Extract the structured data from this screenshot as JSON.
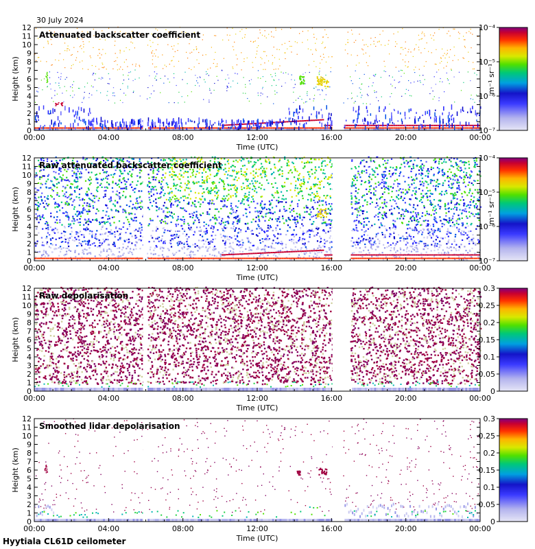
{
  "figure": {
    "date": "30 July 2024",
    "instrument": "Hyytiala CL61D ceilometer"
  },
  "chart_data": [
    {
      "type": "heatmap",
      "title": "Attenuated backscatter coefficient",
      "xlabel": "Time (UTC)",
      "ylabel": "Height (km)",
      "xlim": [
        0,
        24
      ],
      "ylim": [
        0,
        12
      ],
      "x_ticks": [
        "00:00",
        "04:00",
        "08:00",
        "12:00",
        "16:00",
        "20:00",
        "00:00"
      ],
      "y_ticks": [
        "0",
        "1",
        "2",
        "3",
        "4",
        "5",
        "6",
        "7",
        "8",
        "9",
        "10",
        "11",
        "12"
      ],
      "colorbar": {
        "scale": "log",
        "range": [
          1e-07,
          0.0001
        ],
        "tick_labels": [
          "10⁻⁴",
          "10⁻⁵",
          "10⁻⁶",
          "10⁻⁷"
        ],
        "unit_label": "m⁻¹ sr⁻¹"
      },
      "data_gaps_hours": [
        [
          5.85,
          6.05
        ],
        [
          16.05,
          16.6
        ]
      ]
    },
    {
      "type": "heatmap",
      "title": "Raw attenuated backscatter coefficient",
      "xlabel": "Time (UTC)",
      "ylabel": "Height (km)",
      "xlim": [
        0,
        24
      ],
      "ylim": [
        0,
        12
      ],
      "x_ticks": [
        "00:00",
        "04:00",
        "08:00",
        "12:00",
        "16:00",
        "20:00",
        "00:00"
      ],
      "y_ticks": [
        "0",
        "1",
        "2",
        "3",
        "4",
        "5",
        "6",
        "7",
        "8",
        "9",
        "10",
        "11",
        "12"
      ],
      "colorbar": {
        "scale": "log",
        "range": [
          1e-07,
          0.0001
        ],
        "tick_labels": [
          "10⁻⁴",
          "10⁻⁵",
          "10⁻⁶",
          "10⁻⁷"
        ],
        "unit_label": "m⁻¹ sr⁻¹"
      },
      "data_gaps_hours": [
        [
          5.85,
          6.05
        ],
        [
          16.05,
          17.0
        ]
      ]
    },
    {
      "type": "heatmap",
      "title": "Raw depolarisation",
      "xlabel": "Time (UTC)",
      "ylabel": "Height (km)",
      "xlim": [
        0,
        24
      ],
      "ylim": [
        0,
        12
      ],
      "x_ticks": [
        "00:00",
        "04:00",
        "08:00",
        "12:00",
        "16:00",
        "20:00",
        "00:00"
      ],
      "y_ticks": [
        "0",
        "1",
        "2",
        "3",
        "4",
        "5",
        "6",
        "7",
        "8",
        "9",
        "10",
        "11",
        "12"
      ],
      "colorbar": {
        "scale": "linear",
        "range": [
          0,
          0.3
        ],
        "tick_labels": [
          "0.3",
          "0.25",
          "0.2",
          "0.15",
          "0.1",
          "0.05",
          "0"
        ],
        "unit_label": ""
      },
      "data_gaps_hours": [
        [
          5.85,
          6.05
        ],
        [
          16.05,
          17.0
        ]
      ]
    },
    {
      "type": "heatmap",
      "title": "Smoothed lidar depolarisation",
      "xlabel": "Time (UTC)",
      "ylabel": "Height (km)",
      "xlim": [
        0,
        24
      ],
      "ylim": [
        0,
        12
      ],
      "x_ticks": [
        "00:00",
        "04:00",
        "08:00",
        "12:00",
        "16:00",
        "20:00",
        "00:00"
      ],
      "y_ticks": [
        "0",
        "1",
        "2",
        "3",
        "4",
        "5",
        "6",
        "7",
        "8",
        "9",
        "10",
        "11",
        "12"
      ],
      "colorbar": {
        "scale": "linear",
        "range": [
          0,
          0.3
        ],
        "tick_labels": [
          "0.3",
          "0.25",
          "0.2",
          "0.15",
          "0.1",
          "0.05",
          "0"
        ],
        "unit_label": ""
      },
      "data_gaps_hours": [
        [
          5.85,
          6.05
        ],
        [
          16.05,
          16.6
        ]
      ]
    }
  ]
}
